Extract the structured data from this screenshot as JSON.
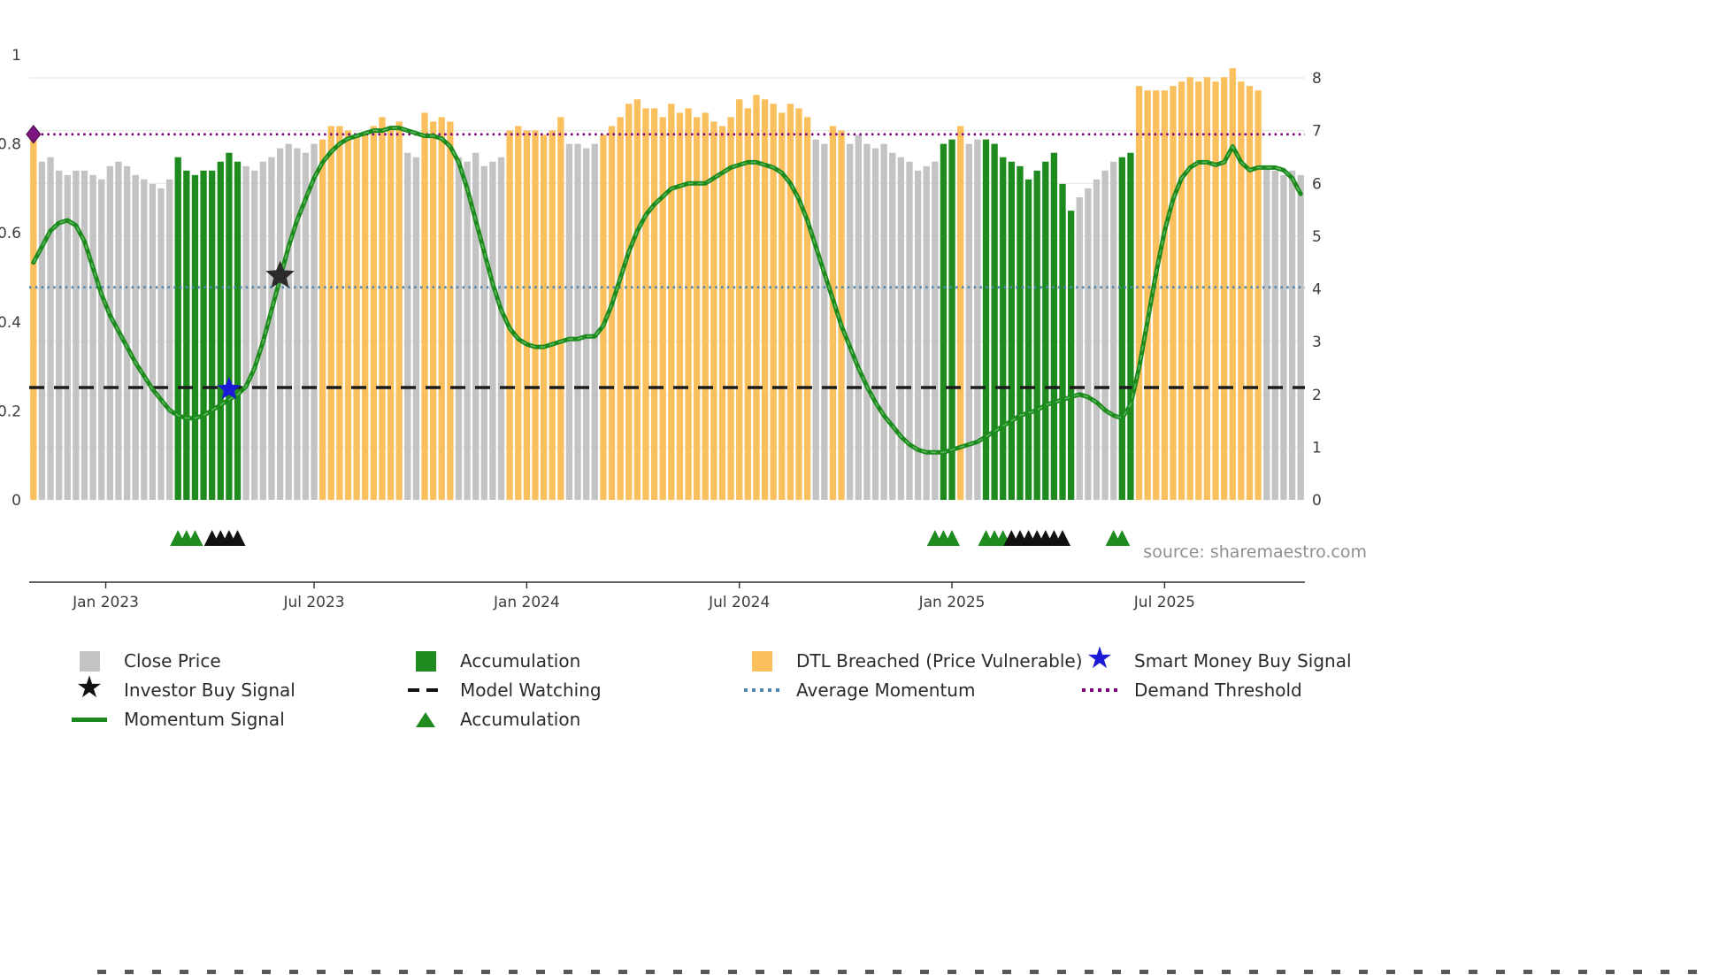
{
  "source_label": "source: sharemaestro.com",
  "chart_data": {
    "type": "bar",
    "title": "",
    "x_axis": {
      "tick_labels": [
        "Jan 2023",
        "Jul 2023",
        "Jan 2024",
        "Jul 2024",
        "Jan 2025",
        "Jul 2025"
      ],
      "tick_weeks": [
        8.5,
        33,
        58,
        83,
        108,
        133
      ]
    },
    "left_axis": {
      "ticks": [
        0,
        0.2,
        0.4,
        0.6,
        0.8,
        1
      ],
      "range": [
        0,
        1
      ]
    },
    "right_axis": {
      "ticks": [
        0,
        1,
        2,
        3,
        4,
        5,
        6,
        7,
        8
      ],
      "range": [
        0,
        8
      ]
    },
    "bars": {
      "name": "Close Price (weekly, normalized)",
      "values": [
        0.82,
        0.76,
        0.77,
        0.74,
        0.73,
        0.74,
        0.74,
        0.73,
        0.72,
        0.75,
        0.76,
        0.75,
        0.73,
        0.72,
        0.71,
        0.7,
        0.72,
        0.77,
        0.74,
        0.73,
        0.74,
        0.74,
        0.76,
        0.78,
        0.76,
        0.75,
        0.74,
        0.76,
        0.77,
        0.79,
        0.8,
        0.79,
        0.78,
        0.8,
        0.81,
        0.84,
        0.84,
        0.83,
        0.82,
        0.82,
        0.84,
        0.86,
        0.84,
        0.85,
        0.78,
        0.77,
        0.87,
        0.85,
        0.86,
        0.85,
        0.77,
        0.76,
        0.78,
        0.75,
        0.76,
        0.77,
        0.83,
        0.84,
        0.83,
        0.83,
        0.82,
        0.83,
        0.86,
        0.8,
        0.8,
        0.79,
        0.8,
        0.82,
        0.84,
        0.86,
        0.89,
        0.9,
        0.88,
        0.88,
        0.86,
        0.89,
        0.87,
        0.88,
        0.86,
        0.87,
        0.85,
        0.84,
        0.86,
        0.9,
        0.88,
        0.91,
        0.9,
        0.89,
        0.87,
        0.89,
        0.88,
        0.86,
        0.81,
        0.8,
        0.84,
        0.83,
        0.8,
        0.82,
        0.8,
        0.79,
        0.8,
        0.78,
        0.77,
        0.76,
        0.74,
        0.75,
        0.76,
        0.8,
        0.81,
        0.84,
        0.8,
        0.81,
        0.81,
        0.8,
        0.77,
        0.76,
        0.75,
        0.72,
        0.74,
        0.76,
        0.78,
        0.71,
        0.65,
        0.68,
        0.7,
        0.72,
        0.74,
        0.76,
        0.77,
        0.78,
        0.93,
        0.92,
        0.92,
        0.92,
        0.93,
        0.94,
        0.95,
        0.94,
        0.95,
        0.94,
        0.95,
        0.97,
        0.94,
        0.93,
        0.92,
        0.75,
        0.74,
        0.73,
        0.74,
        0.73
      ],
      "color_segments": [
        [
          "o",
          1
        ],
        [
          "g",
          16
        ],
        [
          "a",
          8
        ],
        [
          "g",
          9
        ],
        [
          "o",
          10
        ],
        [
          "g",
          2
        ],
        [
          "o",
          4
        ],
        [
          "g",
          6
        ],
        [
          "o",
          7
        ],
        [
          "g",
          4
        ],
        [
          "o",
          25
        ],
        [
          "g",
          2
        ],
        [
          "o",
          2
        ],
        [
          "g",
          11
        ],
        [
          "a",
          2
        ],
        [
          "o",
          1
        ],
        [
          "g",
          2
        ],
        [
          "a",
          11
        ],
        [
          "g",
          5
        ],
        [
          "a",
          2
        ],
        [
          "o",
          15
        ],
        [
          "g",
          5
        ]
      ],
      "color_map": {
        "g": {
          "label": "Close Price",
          "hex": "#c3c3c3"
        },
        "a": {
          "label": "Accumulation",
          "hex": "#1f8b1f"
        },
        "o": {
          "label": "DTL Breached (Price Vulnerable)",
          "hex": "#fbc05e"
        }
      }
    },
    "momentum": {
      "name": "Momentum Signal",
      "axis": "right",
      "color": "#1c8a1c",
      "values": [
        4.5,
        4.8,
        5.1,
        5.25,
        5.3,
        5.2,
        4.9,
        4.4,
        3.9,
        3.5,
        3.2,
        2.9,
        2.6,
        2.35,
        2.1,
        1.9,
        1.7,
        1.6,
        1.55,
        1.55,
        1.6,
        1.7,
        1.8,
        1.9,
        2.0,
        2.15,
        2.5,
        3.0,
        3.6,
        4.2,
        4.8,
        5.3,
        5.7,
        6.1,
        6.4,
        6.6,
        6.75,
        6.85,
        6.9,
        6.95,
        7.0,
        7.0,
        7.05,
        7.05,
        7.0,
        6.95,
        6.9,
        6.9,
        6.85,
        6.7,
        6.4,
        5.9,
        5.3,
        4.7,
        4.1,
        3.6,
        3.25,
        3.05,
        2.95,
        2.9,
        2.9,
        2.95,
        3.0,
        3.05,
        3.05,
        3.1,
        3.1,
        3.3,
        3.7,
        4.2,
        4.7,
        5.1,
        5.4,
        5.6,
        5.75,
        5.9,
        5.95,
        6.0,
        6.0,
        6.0,
        6.1,
        6.2,
        6.3,
        6.35,
        6.4,
        6.4,
        6.35,
        6.3,
        6.2,
        6.0,
        5.7,
        5.3,
        4.8,
        4.3,
        3.8,
        3.3,
        2.9,
        2.5,
        2.15,
        1.85,
        1.6,
        1.4,
        1.2,
        1.05,
        0.95,
        0.9,
        0.9,
        0.9,
        0.95,
        1.0,
        1.05,
        1.1,
        1.2,
        1.3,
        1.4,
        1.5,
        1.6,
        1.65,
        1.7,
        1.8,
        1.85,
        1.9,
        1.95,
        2.0,
        1.95,
        1.85,
        1.7,
        1.6,
        1.55,
        1.8,
        2.5,
        3.4,
        4.3,
        5.1,
        5.7,
        6.1,
        6.3,
        6.4,
        6.4,
        6.35,
        6.4,
        6.7,
        6.4,
        6.25,
        6.3,
        6.3,
        6.3,
        6.25,
        6.1,
        5.8
      ]
    },
    "reference_lines": [
      {
        "name": "Demand Threshold",
        "axis": "right",
        "value": 6.93,
        "color": "#7d007d",
        "style": "dotted"
      },
      {
        "name": "Average Momentum",
        "axis": "right",
        "value": 4.03,
        "color": "#4f86b0",
        "style": "dotted"
      },
      {
        "name": "Model Watching",
        "axis": "right",
        "value": 2.13,
        "color": "#1c1c1c",
        "style": "dashed"
      }
    ],
    "markers": {
      "smart_money_buy": {
        "week": 23,
        "value": 2.1,
        "color": "#1a1ad6",
        "shape": "star"
      },
      "investor_buy": {
        "week": 29,
        "value": 4.25,
        "color": "#2b2b2b",
        "shape": "star"
      },
      "demand_threshold_start": {
        "week": 0,
        "value": 6.93,
        "color": "#7c1580",
        "shape": "diamond"
      },
      "accumulation_triangles_green": [
        17,
        18,
        19,
        106,
        107,
        108,
        112,
        113,
        114,
        127,
        128
      ],
      "accumulation_triangles_black": [
        21,
        22,
        23,
        24,
        115,
        116,
        117,
        118,
        119,
        120,
        121
      ]
    }
  },
  "legend": {
    "columns": [
      {
        "items": [
          {
            "swatch": "square",
            "color": "#c3c3c3",
            "label": "Close Price"
          },
          {
            "swatch": "star",
            "color": "#111111",
            "label": "Investor Buy Signal"
          },
          {
            "swatch": "line",
            "color": "#1c8a1c",
            "label": "Momentum Signal"
          }
        ]
      },
      {
        "items": [
          {
            "swatch": "square",
            "color": "#1f8b1f",
            "label": "Accumulation"
          },
          {
            "swatch": "dashed",
            "color": "#111111",
            "label": "Model Watching"
          },
          {
            "swatch": "triangle",
            "color": "#1f8b1f",
            "label": "Accumulation"
          }
        ]
      },
      {
        "items": [
          {
            "swatch": "square",
            "color": "#fbc05e",
            "label": "DTL Breached (Price Vulnerable)"
          },
          {
            "swatch": "dotted",
            "color": "#4f86b0",
            "label": "Average Momentum"
          }
        ]
      },
      {
        "items": [
          {
            "swatch": "star",
            "color": "#1a1ad6",
            "label": "Smart Money Buy Signal"
          },
          {
            "swatch": "dotted",
            "color": "#7d007d",
            "label": "Demand Threshold"
          }
        ]
      }
    ]
  }
}
